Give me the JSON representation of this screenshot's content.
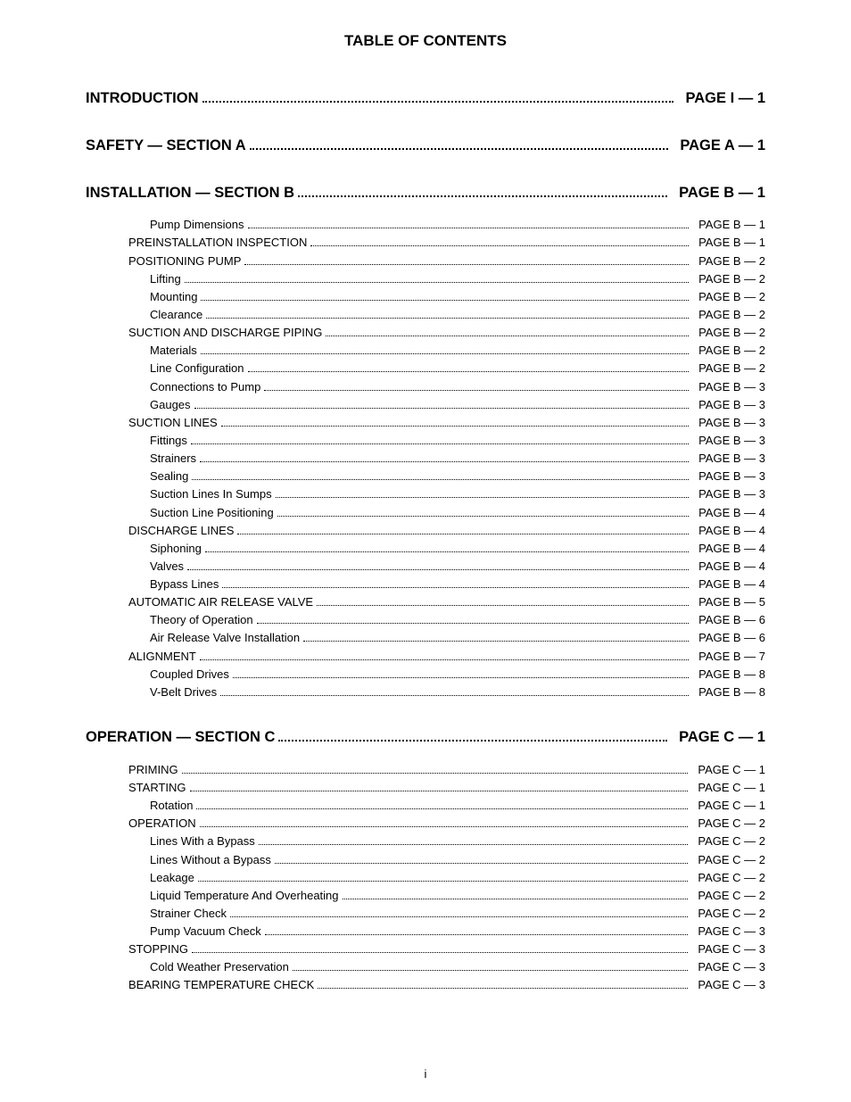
{
  "title": "TABLE OF CONTENTS",
  "page_number": "i",
  "colors": {
    "text": "#000000",
    "background": "#ffffff"
  },
  "sections": [
    {
      "label": "INTRODUCTION",
      "page": "PAGE I — 1",
      "items": []
    },
    {
      "label": "SAFETY — SECTION A",
      "page": "PAGE A — 1",
      "items": []
    },
    {
      "label": "INSTALLATION — SECTION B",
      "page": "PAGE B — 1",
      "items": [
        {
          "label": "Pump Dimensions",
          "page": "PAGE B — 1",
          "indent": 1
        },
        {
          "label": "PREINSTALLATION INSPECTION",
          "page": "PAGE B — 1",
          "indent": 0
        },
        {
          "label": "POSITIONING PUMP",
          "page": "PAGE B — 2",
          "indent": 0
        },
        {
          "label": "Lifting",
          "page": "PAGE B — 2",
          "indent": 1
        },
        {
          "label": "Mounting",
          "page": "PAGE B — 2",
          "indent": 1
        },
        {
          "label": "Clearance",
          "page": "PAGE B — 2",
          "indent": 1
        },
        {
          "label": "SUCTION AND DISCHARGE PIPING",
          "page": "PAGE B — 2",
          "indent": 0
        },
        {
          "label": "Materials",
          "page": "PAGE B — 2",
          "indent": 1
        },
        {
          "label": "Line Configuration",
          "page": "PAGE B — 2",
          "indent": 1
        },
        {
          "label": "Connections to Pump",
          "page": "PAGE B — 3",
          "indent": 1
        },
        {
          "label": "Gauges",
          "page": "PAGE B — 3",
          "indent": 1
        },
        {
          "label": "SUCTION LINES",
          "page": "PAGE B — 3",
          "indent": 0
        },
        {
          "label": "Fittings",
          "page": "PAGE B — 3",
          "indent": 1
        },
        {
          "label": "Strainers",
          "page": "PAGE B — 3",
          "indent": 1
        },
        {
          "label": "Sealing",
          "page": "PAGE B — 3",
          "indent": 1
        },
        {
          "label": "Suction Lines In Sumps",
          "page": "PAGE B — 3",
          "indent": 1
        },
        {
          "label": "Suction Line Positioning",
          "page": "PAGE B — 4",
          "indent": 1
        },
        {
          "label": "DISCHARGE LINES",
          "page": "PAGE B — 4",
          "indent": 0
        },
        {
          "label": "Siphoning",
          "page": "PAGE B — 4",
          "indent": 1
        },
        {
          "label": "Valves",
          "page": "PAGE B — 4",
          "indent": 1
        },
        {
          "label": "Bypass Lines",
          "page": "PAGE B — 4",
          "indent": 1
        },
        {
          "label": "AUTOMATIC AIR RELEASE VALVE",
          "page": "PAGE B — 5",
          "indent": 0
        },
        {
          "label": "Theory of Operation",
          "page": "PAGE B — 6",
          "indent": 1
        },
        {
          "label": "Air Release Valve Installation",
          "page": "PAGE B — 6",
          "indent": 1
        },
        {
          "label": "ALIGNMENT",
          "page": "PAGE B — 7",
          "indent": 0
        },
        {
          "label": "Coupled Drives",
          "page": "PAGE B — 8",
          "indent": 1
        },
        {
          "label": "V-Belt Drives",
          "page": "PAGE B — 8",
          "indent": 1
        }
      ]
    },
    {
      "label": "OPERATION — SECTION C",
      "page": "PAGE C — 1",
      "items": [
        {
          "label": "PRIMING",
          "page": "PAGE C — 1",
          "indent": 0
        },
        {
          "label": "STARTING",
          "page": "PAGE C — 1",
          "indent": 0
        },
        {
          "label": "Rotation",
          "page": "PAGE C — 1",
          "indent": 1
        },
        {
          "label": "OPERATION",
          "page": "PAGE C — 2",
          "indent": 0
        },
        {
          "label": "Lines With a Bypass",
          "page": "PAGE C — 2",
          "indent": 1
        },
        {
          "label": "Lines Without a Bypass",
          "page": "PAGE C — 2",
          "indent": 1
        },
        {
          "label": "Leakage",
          "page": "PAGE C — 2",
          "indent": 1
        },
        {
          "label": "Liquid Temperature And Overheating",
          "page": "PAGE C — 2",
          "indent": 1
        },
        {
          "label": "Strainer Check",
          "page": "PAGE C — 2",
          "indent": 1
        },
        {
          "label": "Pump Vacuum Check",
          "page": "PAGE C — 3",
          "indent": 1
        },
        {
          "label": "STOPPING",
          "page": "PAGE C — 3",
          "indent": 0
        },
        {
          "label": "Cold Weather Preservation",
          "page": "PAGE C — 3",
          "indent": 1
        },
        {
          "label": "BEARING TEMPERATURE CHECK",
          "page": "PAGE C — 3",
          "indent": 0
        }
      ]
    }
  ]
}
